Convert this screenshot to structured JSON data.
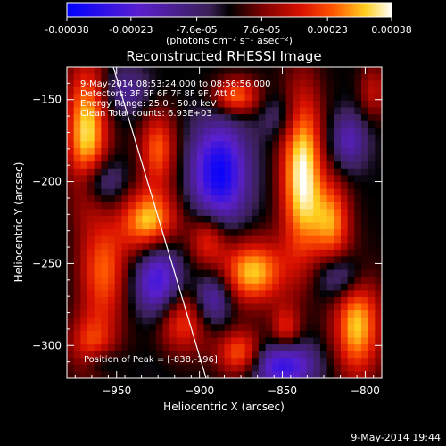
{
  "chart_data": {
    "type": "heatmap",
    "title": "Reconstructed RHESSI Image",
    "xlabel": "Heliocentric X (arcsec)",
    "ylabel": "Heliocentric Y (arcsec)",
    "xlim": [
      -980,
      -790
    ],
    "ylim": [
      -320,
      -130
    ],
    "xticks": [
      -950,
      -900,
      -850,
      -800
    ],
    "yticks": [
      -150,
      -200,
      -250,
      -300
    ],
    "colorbar": {
      "min": -0.00038,
      "max": 0.00038,
      "tick_values": [
        -0.00038,
        -0.00023,
        -7.6e-05,
        7.6e-05,
        0.00023,
        0.00038
      ],
      "tick_labels": [
        "-0.00038",
        "-0.00023",
        "-7.6e-05",
        "7.6e-05",
        "0.00023",
        "0.00038"
      ],
      "label": "(photons cm⁻² s⁻¹ asec⁻²)"
    },
    "annotations": [
      "9-May-2014 08:53:24.000 to 08:56:56.000",
      "Detectors: 3F 5F 6F 7F 8F 9F, Att 0",
      "Energy Range: 25.0 - 50.0 keV",
      "Clean    Total counts: 6.93E+03"
    ],
    "peak_label": "Position of Peak = [-838,-196]",
    "limb_line": [
      [
        -952,
        -130
      ],
      [
        -896,
        -320
      ]
    ],
    "sources": [
      {
        "x": -968,
        "y": -170,
        "sx": 9,
        "sy": 30,
        "v": 0.00034
      },
      {
        "x": -958,
        "y": -255,
        "sx": 10,
        "sy": 22,
        "v": 0.00024
      },
      {
        "x": -965,
        "y": -300,
        "sx": 10,
        "sy": 14,
        "v": 0.0002
      },
      {
        "x": -930,
        "y": -225,
        "sx": 12,
        "sy": 14,
        "v": 0.00036
      },
      {
        "x": -915,
        "y": -285,
        "sx": 14,
        "sy": 14,
        "v": 0.00028
      },
      {
        "x": -925,
        "y": -180,
        "sx": 8,
        "sy": 16,
        "v": 0.00024
      },
      {
        "x": -895,
        "y": -235,
        "sx": 8,
        "sy": 12,
        "v": 0.0002
      },
      {
        "x": -878,
        "y": -148,
        "sx": 10,
        "sy": 8,
        "v": 0.00026
      },
      {
        "x": -868,
        "y": -255,
        "sx": 14,
        "sy": 14,
        "v": 0.00032
      },
      {
        "x": -875,
        "y": -305,
        "sx": 10,
        "sy": 10,
        "v": 0.00026
      },
      {
        "x": -838,
        "y": -196,
        "sx": 9,
        "sy": 36,
        "v": 0.00038
      },
      {
        "x": -820,
        "y": -225,
        "sx": 8,
        "sy": 18,
        "v": 0.00026
      },
      {
        "x": -805,
        "y": -288,
        "sx": 10,
        "sy": 22,
        "v": 0.00032
      },
      {
        "x": -848,
        "y": -290,
        "sx": 6,
        "sy": 10,
        "v": 0.00018
      },
      {
        "x": -795,
        "y": -145,
        "sx": 6,
        "sy": 12,
        "v": 0.00014
      },
      {
        "x": -960,
        "y": -200,
        "sx": 10,
        "sy": 10,
        "v": -0.00018
      },
      {
        "x": -945,
        "y": -145,
        "sx": 10,
        "sy": 10,
        "v": -0.00014
      },
      {
        "x": -888,
        "y": -195,
        "sx": 12,
        "sy": 22,
        "v": -0.00036
      },
      {
        "x": -925,
        "y": -265,
        "sx": 10,
        "sy": 22,
        "v": -0.00032
      },
      {
        "x": -892,
        "y": -272,
        "sx": 8,
        "sy": 12,
        "v": -0.00022
      },
      {
        "x": -850,
        "y": -312,
        "sx": 14,
        "sy": 10,
        "v": -0.0003
      },
      {
        "x": -815,
        "y": -258,
        "sx": 10,
        "sy": 10,
        "v": -0.00018
      },
      {
        "x": -810,
        "y": -175,
        "sx": 8,
        "sy": 12,
        "v": -0.00018
      },
      {
        "x": -852,
        "y": -160,
        "sx": 8,
        "sy": 10,
        "v": -0.0001
      },
      {
        "x": -960,
        "y": -310,
        "sx": 8,
        "sy": 6,
        "v": -0.00012
      }
    ]
  },
  "footer": {
    "timestamp": "9-May-2014 19:44"
  }
}
